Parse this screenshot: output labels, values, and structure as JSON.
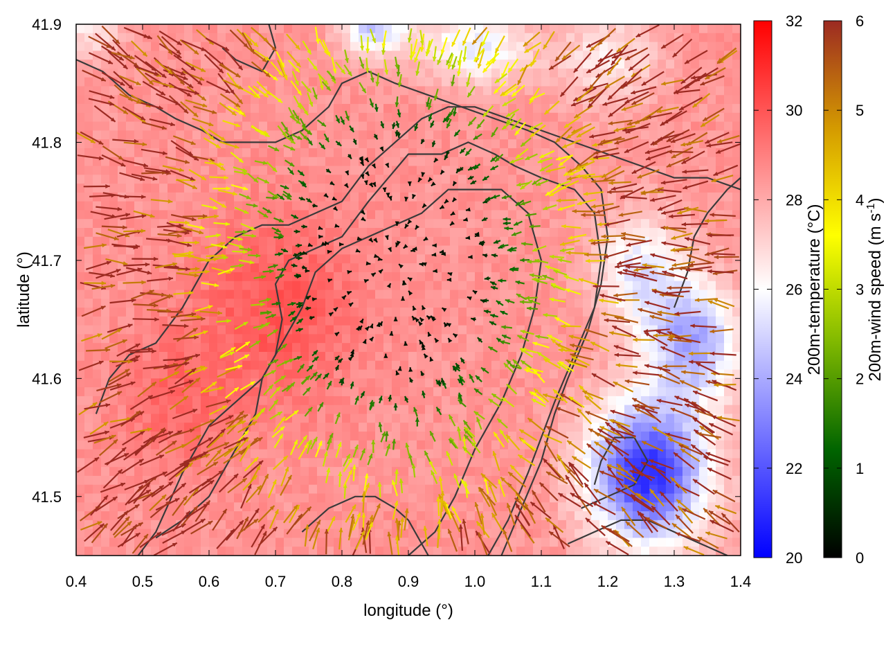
{
  "chart_data": {
    "type": "heatmap",
    "xlabel": "longitude (°)",
    "ylabel": "latitude (°)",
    "xlim": [
      0.4,
      1.4
    ],
    "ylim": [
      41.45,
      41.9
    ],
    "x_ticks": [
      "0.4",
      "0.5",
      "0.6",
      "0.7",
      "0.8",
      "0.9",
      "1.0",
      "1.1",
      "1.2",
      "1.3",
      "1.4"
    ],
    "y_ticks": [
      "41.5",
      "41.6",
      "41.7",
      "41.8",
      "41.9"
    ],
    "x_tick_values": [
      0.4,
      0.5,
      0.6,
      0.7,
      0.8,
      0.9,
      1.0,
      1.1,
      1.2,
      1.3,
      1.4
    ],
    "y_tick_values": [
      41.5,
      41.6,
      41.7,
      41.8,
      41.9
    ],
    "temperature_colorbar": {
      "label": "200m-temperature (°C)",
      "range": [
        20,
        32
      ],
      "ticks": [
        "20",
        "22",
        "24",
        "26",
        "28",
        "30",
        "32"
      ],
      "tick_values": [
        20,
        22,
        24,
        26,
        28,
        30,
        32
      ],
      "colors": [
        "#0000ff",
        "#ffffff",
        "#ff0000"
      ]
    },
    "windspeed_colorbar": {
      "label": "200m-wind speed (m s",
      "label_sup": "-1",
      "label_end": ")",
      "range": [
        0,
        6
      ],
      "ticks": [
        "0",
        "1",
        "2",
        "3",
        "4",
        "5",
        "6"
      ],
      "tick_values": [
        0,
        1,
        2,
        3,
        4,
        5,
        6
      ],
      "colors": [
        "#000000",
        "#006400",
        "#7fb800",
        "#ffff00",
        "#d49a00",
        "#9c2a22"
      ]
    },
    "temperature_field": {
      "base": 28.5,
      "anomalies": [
        {
          "lon": 1.26,
          "lat": 41.52,
          "amp": -7.5,
          "slon": 0.09,
          "slat": 0.06
        },
        {
          "lon": 1.33,
          "lat": 41.63,
          "amp": -4.5,
          "slon": 0.07,
          "slat": 0.05
        },
        {
          "lon": 1.25,
          "lat": 41.69,
          "amp": -3.0,
          "slon": 0.07,
          "slat": 0.05
        },
        {
          "lon": 0.85,
          "lat": 41.9,
          "amp": -4.0,
          "slon": 0.05,
          "slat": 0.025
        },
        {
          "lon": 1.0,
          "lat": 41.88,
          "amp": -3.0,
          "slon": 0.08,
          "slat": 0.03
        },
        {
          "lon": 1.2,
          "lat": 41.87,
          "amp": -2.0,
          "slon": 0.08,
          "slat": 0.04
        },
        {
          "lon": 0.42,
          "lat": 41.9,
          "amp": -2.0,
          "slon": 0.05,
          "slat": 0.03
        },
        {
          "lon": 0.7,
          "lat": 41.66,
          "amp": 1.5,
          "slon": 0.12,
          "slat": 0.08
        },
        {
          "lon": 0.55,
          "lat": 41.58,
          "amp": 1.0,
          "slon": 0.08,
          "slat": 0.06
        }
      ]
    },
    "wind_field": {
      "convergence_center": [
        0.88,
        41.7
      ],
      "speed_at_center": 0.0,
      "speed_gradient": 5.2,
      "calm_radius": 0.12,
      "max_speed": 6
    },
    "contours": [
      [
        [
          0.52,
          41.465
        ],
        [
          0.56,
          41.48
        ],
        [
          0.6,
          41.5
        ],
        [
          0.64,
          41.54
        ],
        [
          0.67,
          41.57
        ],
        [
          0.68,
          41.6
        ],
        [
          0.7,
          41.62
        ],
        [
          0.71,
          41.65
        ],
        [
          0.7,
          41.68
        ],
        [
          0.72,
          41.7
        ],
        [
          0.76,
          41.71
        ],
        [
          0.8,
          41.72
        ],
        [
          0.84,
          41.75
        ],
        [
          0.87,
          41.77
        ],
        [
          0.9,
          41.79
        ],
        [
          0.95,
          41.79
        ],
        [
          0.99,
          41.8
        ],
        [
          1.03,
          41.79
        ],
        [
          1.06,
          41.78
        ],
        [
          1.1,
          41.77
        ],
        [
          1.15,
          41.76
        ],
        [
          1.18,
          41.74
        ],
        [
          1.19,
          41.7
        ],
        [
          1.18,
          41.66
        ],
        [
          1.15,
          41.62
        ],
        [
          1.12,
          41.58
        ],
        [
          1.1,
          41.55
        ],
        [
          1.08,
          41.52
        ],
        [
          1.05,
          41.48
        ],
        [
          1.02,
          41.45
        ]
      ],
      [
        [
          0.4,
          41.87
        ],
        [
          0.44,
          41.86
        ],
        [
          0.48,
          41.84
        ],
        [
          0.52,
          41.83
        ],
        [
          0.55,
          41.82
        ],
        [
          0.59,
          41.81
        ],
        [
          0.62,
          41.8
        ],
        [
          0.66,
          41.8
        ],
        [
          0.7,
          41.8
        ],
        [
          0.74,
          41.81
        ],
        [
          0.78,
          41.83
        ],
        [
          0.8,
          41.85
        ],
        [
          0.84,
          41.86
        ],
        [
          0.88,
          41.85
        ],
        [
          0.93,
          41.84
        ],
        [
          0.98,
          41.83
        ],
        [
          1.03,
          41.82
        ],
        [
          1.08,
          41.81
        ],
        [
          1.12,
          41.8
        ],
        [
          1.16,
          41.78
        ],
        [
          1.19,
          41.76
        ],
        [
          1.2,
          41.72
        ],
        [
          1.19,
          41.68
        ],
        [
          1.17,
          41.64
        ],
        [
          1.14,
          41.6
        ],
        [
          1.12,
          41.57
        ],
        [
          1.1,
          41.53
        ],
        [
          1.07,
          41.49
        ],
        [
          1.04,
          41.45
        ]
      ],
      [
        [
          0.43,
          41.57
        ],
        [
          0.45,
          41.6
        ],
        [
          0.48,
          41.62
        ],
        [
          0.52,
          41.63
        ],
        [
          0.56,
          41.66
        ],
        [
          0.6,
          41.7
        ],
        [
          0.64,
          41.72
        ],
        [
          0.68,
          41.73
        ],
        [
          0.72,
          41.73
        ],
        [
          0.76,
          41.74
        ],
        [
          0.8,
          41.75
        ],
        [
          0.84,
          41.78
        ],
        [
          0.88,
          41.8
        ],
        [
          0.92,
          41.82
        ],
        [
          0.96,
          41.83
        ],
        [
          1.0,
          41.83
        ],
        [
          1.05,
          41.82
        ],
        [
          1.1,
          41.81
        ],
        [
          1.15,
          41.8
        ],
        [
          1.2,
          41.79
        ],
        [
          1.25,
          41.78
        ],
        [
          1.3,
          41.77
        ],
        [
          1.35,
          41.77
        ],
        [
          1.4,
          41.76
        ]
      ],
      [
        [
          0.48,
          41.44
        ],
        [
          0.52,
          41.47
        ],
        [
          0.56,
          41.52
        ],
        [
          0.6,
          41.56
        ],
        [
          0.64,
          41.58
        ],
        [
          0.68,
          41.6
        ],
        [
          0.7,
          41.62
        ],
        [
          0.72,
          41.64
        ],
        [
          0.74,
          41.66
        ],
        [
          0.76,
          41.69
        ],
        [
          0.8,
          41.71
        ],
        [
          0.84,
          41.72
        ],
        [
          0.88,
          41.73
        ],
        [
          0.92,
          41.74
        ],
        [
          0.96,
          41.76
        ],
        [
          1.0,
          41.76
        ],
        [
          1.04,
          41.76
        ],
        [
          1.08,
          41.74
        ],
        [
          1.1,
          41.7
        ],
        [
          1.09,
          41.66
        ],
        [
          1.07,
          41.62
        ],
        [
          1.04,
          41.58
        ],
        [
          1.0,
          41.54
        ],
        [
          0.97,
          41.5
        ],
        [
          0.94,
          41.47
        ],
        [
          0.9,
          41.45
        ]
      ],
      [
        [
          1.16,
          41.49
        ],
        [
          1.2,
          41.5
        ],
        [
          1.24,
          41.51
        ],
        [
          1.26,
          41.53
        ],
        [
          1.24,
          41.55
        ],
        [
          1.21,
          41.55
        ],
        [
          1.19,
          41.53
        ],
        [
          1.18,
          41.51
        ]
      ],
      [
        [
          1.14,
          41.46
        ],
        [
          1.18,
          41.47
        ],
        [
          1.22,
          41.48
        ],
        [
          1.26,
          41.48
        ],
        [
          1.3,
          41.47
        ],
        [
          1.34,
          41.46
        ],
        [
          1.38,
          41.45
        ]
      ],
      [
        [
          0.62,
          41.88
        ],
        [
          0.64,
          41.87
        ],
        [
          0.68,
          41.86
        ],
        [
          0.7,
          41.88
        ],
        [
          0.69,
          41.9
        ]
      ],
      [
        [
          1.3,
          41.66
        ],
        [
          1.32,
          41.69
        ],
        [
          1.33,
          41.72
        ],
        [
          1.35,
          41.74
        ],
        [
          1.38,
          41.76
        ],
        [
          1.4,
          41.77
        ]
      ],
      [
        [
          0.74,
          41.47
        ],
        [
          0.78,
          41.49
        ],
        [
          0.82,
          41.5
        ],
        [
          0.85,
          41.5
        ],
        [
          0.88,
          41.49
        ],
        [
          0.9,
          41.48
        ],
        [
          0.92,
          41.46
        ],
        [
          0.93,
          41.45
        ]
      ]
    ]
  }
}
